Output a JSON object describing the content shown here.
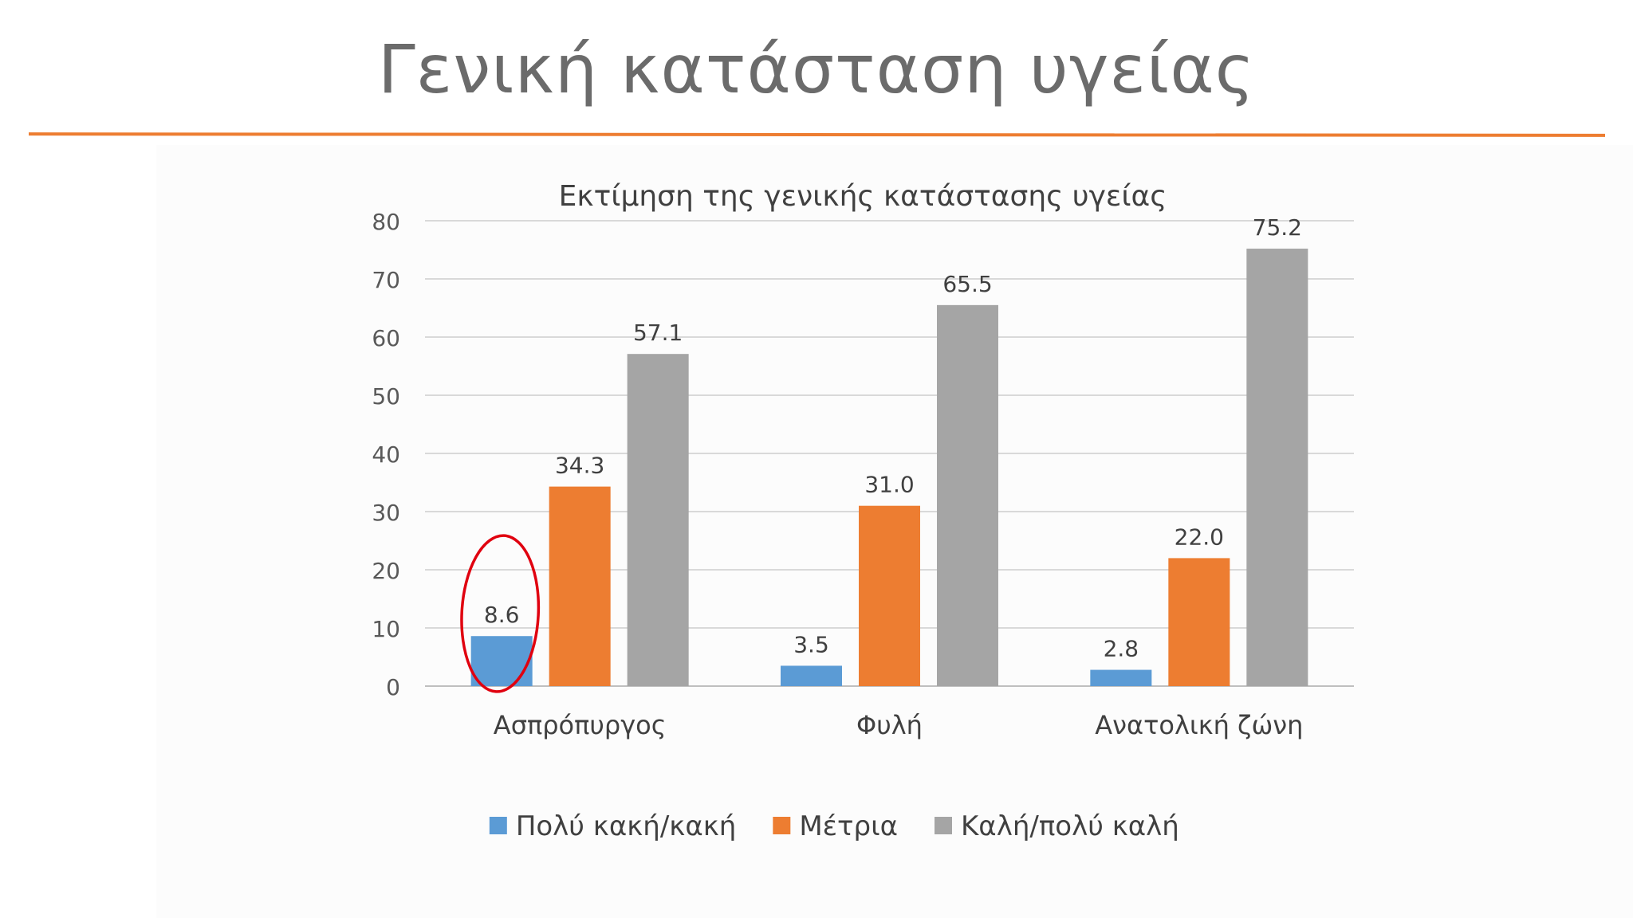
{
  "slide": {
    "title": "Γενική κατάσταση υγείας"
  },
  "chart_data": {
    "type": "bar",
    "title": "Εκτίμηση της γενικής κατάστασης υγείας",
    "xlabel": "",
    "ylabel": "",
    "ylim": [
      0,
      80
    ],
    "yticks": [
      0,
      10,
      20,
      30,
      40,
      50,
      60,
      70,
      80
    ],
    "grid": true,
    "legend_position": "bottom",
    "categories": [
      "Ασπρόπυργος",
      "Φυλή",
      "Ανατολική ζώνη"
    ],
    "series": [
      {
        "name": "Πολύ κακή/κακή",
        "color": "#5b9bd5",
        "values": [
          8.6,
          3.5,
          2.8
        ],
        "labels": [
          "8.6",
          "3.5",
          "2.8"
        ]
      },
      {
        "name": "Μέτρια",
        "color": "#ed7d31",
        "values": [
          34.3,
          31.0,
          22.0
        ],
        "labels": [
          "34.3",
          "31.0",
          "22.0"
        ]
      },
      {
        "name": "Καλή/πολύ καλή",
        "color": "#a5a5a5",
        "values": [
          57.1,
          65.5,
          75.2
        ],
        "labels": [
          "57.1",
          "65.5",
          "75.2"
        ]
      }
    ],
    "annotation": {
      "type": "ellipse",
      "color": "#e0000f",
      "target_category": "Ασπρόπυργος",
      "target_series": "Πολύ κακή/κακή"
    }
  }
}
